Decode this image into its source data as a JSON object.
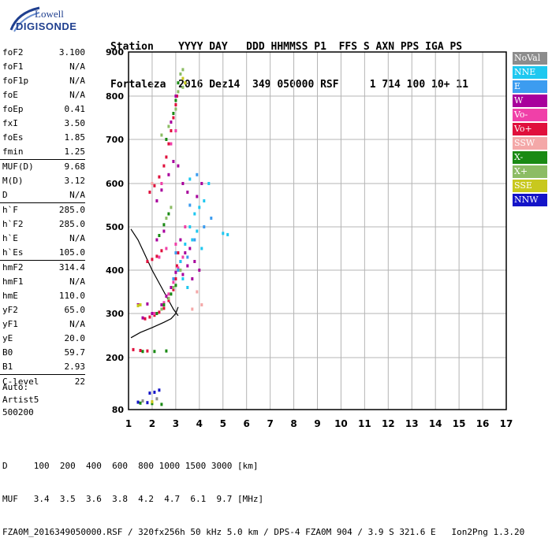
{
  "logo": {
    "brand": "Lowell",
    "name": "DIGISONDE"
  },
  "header": {
    "line1": "Station    YYYY DAY   DDD HHMMSS P1  FFS S AXN PPS IGA PS",
    "line2": "Fortaleza  2016 Dez14  349 050000 RSF     1 714 100 10+ 11"
  },
  "params": {
    "g1": [
      {
        "label": "foF2",
        "value": "3.100"
      },
      {
        "label": "foF1",
        "value": "N/A"
      },
      {
        "label": "foF1p",
        "value": "N/A"
      },
      {
        "label": "foE",
        "value": "N/A"
      },
      {
        "label": "foEp",
        "value": "0.41"
      },
      {
        "label": "fxI",
        "value": "3.50"
      },
      {
        "label": "foEs",
        "value": "1.85"
      },
      {
        "label": "fmin",
        "value": "1.25"
      }
    ],
    "g2": [
      {
        "label": "MUF(D)",
        "value": "9.68"
      },
      {
        "label": "M(D)",
        "value": "3.12"
      },
      {
        "label": "D",
        "value": "N/A"
      }
    ],
    "g3": [
      {
        "label": "h`F",
        "value": "285.0"
      },
      {
        "label": "h`F2",
        "value": "285.0"
      },
      {
        "label": "h`E",
        "value": "N/A"
      },
      {
        "label": "h`Es",
        "value": "105.0"
      }
    ],
    "g4": [
      {
        "label": "hmF2",
        "value": "314.4"
      },
      {
        "label": "hmF1",
        "value": "N/A"
      },
      {
        "label": "hmE",
        "value": "110.0"
      },
      {
        "label": "yF2",
        "value": "65.0"
      },
      {
        "label": "yF1",
        "value": "N/A"
      },
      {
        "label": "yE",
        "value": "20.0"
      },
      {
        "label": "B0",
        "value": "59.7"
      },
      {
        "label": "B1",
        "value": "2.93"
      }
    ],
    "g5": [
      {
        "label": "C-level",
        "value": "22"
      }
    ]
  },
  "auto": {
    "line1": "Auto:",
    "line2": "Artist5",
    "line3": "500200"
  },
  "legend": [
    {
      "label": "NoVal",
      "color": "#8c8c8c"
    },
    {
      "label": "NNE",
      "color": "#1ec8f0"
    },
    {
      "label": "E",
      "color": "#3c9cf0"
    },
    {
      "label": "W",
      "color": "#a8009c"
    },
    {
      "label": "Vo-",
      "color": "#f040a8"
    },
    {
      "label": "Vo+",
      "color": "#e0103c"
    },
    {
      "label": "SSW",
      "color": "#f4a8a8"
    },
    {
      "label": "X-",
      "color": "#1a8a14"
    },
    {
      "label": "X+",
      "color": "#8cbc64"
    },
    {
      "label": "SSE",
      "color": "#c8c81e"
    },
    {
      "label": "NNW",
      "color": "#1414c8"
    }
  ],
  "footer": {
    "line1": "D     100  200  400  600  800 1000 1500 3000 [km]",
    "line2": "MUF   3.4  3.5  3.6  3.8  4.2  4.7  6.1  9.7 [MHz]",
    "line3": "FZA0M_2016349050000.RSF / 320fx256h 50 kHz 5.0 km / DPS-4 FZA0M 904 / 3.9 S 321.6 E   Ion2Png 1.3.20"
  },
  "chart_data": {
    "type": "scatter",
    "xlim": [
      1,
      17
    ],
    "ylim": [
      80,
      900
    ],
    "xticks": [
      "1",
      "2",
      "3",
      "4",
      "5",
      "6",
      "7",
      "8",
      "9",
      "10",
      "11",
      "12",
      "13",
      "14",
      "15",
      "16",
      "17"
    ],
    "yticks": [
      "80",
      "200",
      "300",
      "400",
      "500",
      "600",
      "700",
      "800",
      "900"
    ],
    "grid": true,
    "series": [
      {
        "name": "Vo+",
        "color": "#e0103c",
        "points": [
          [
            1.7,
            288
          ],
          [
            1.9,
            292
          ],
          [
            2.1,
            296
          ],
          [
            2.3,
            303
          ],
          [
            2.5,
            312
          ],
          [
            2.7,
            330
          ],
          [
            2.9,
            355
          ],
          [
            3.0,
            380
          ],
          [
            3.05,
            410
          ],
          [
            3.1,
            440
          ],
          [
            1.9,
            580
          ],
          [
            2.1,
            595
          ],
          [
            2.3,
            615
          ],
          [
            2.5,
            640
          ],
          [
            2.6,
            660
          ],
          [
            2.7,
            690
          ],
          [
            2.8,
            720
          ],
          [
            2.9,
            750
          ],
          [
            3.0,
            780
          ],
          [
            3.05,
            800
          ],
          [
            1.8,
            420
          ],
          [
            2.0,
            425
          ],
          [
            2.2,
            432
          ],
          [
            2.4,
            445
          ],
          [
            1.2,
            218
          ],
          [
            1.5,
            216
          ],
          [
            1.8,
            215
          ]
        ]
      },
      {
        "name": "W",
        "color": "#a8009c",
        "points": [
          [
            1.6,
            290
          ],
          [
            2.0,
            300
          ],
          [
            2.4,
            320
          ],
          [
            2.6,
            340
          ],
          [
            2.8,
            360
          ],
          [
            3.0,
            395
          ],
          [
            3.2,
            420
          ],
          [
            3.4,
            440
          ],
          [
            3.6,
            450
          ],
          [
            3.8,
            420
          ],
          [
            4.0,
            400
          ],
          [
            3.3,
            390
          ],
          [
            3.5,
            410
          ],
          [
            3.7,
            380
          ],
          [
            2.2,
            560
          ],
          [
            2.4,
            585
          ],
          [
            2.7,
            620
          ],
          [
            2.9,
            650
          ],
          [
            3.1,
            640
          ],
          [
            3.3,
            600
          ],
          [
            3.5,
            580
          ],
          [
            3.9,
            570
          ],
          [
            4.1,
            600
          ],
          [
            2.8,
            740
          ],
          [
            3.0,
            800
          ],
          [
            1.4,
            320
          ],
          [
            1.8,
            322
          ],
          [
            2.2,
            470
          ],
          [
            2.5,
            490
          ],
          [
            3.2,
            470
          ]
        ]
      },
      {
        "name": "Vo-",
        "color": "#f040a8",
        "points": [
          [
            2.1,
            300
          ],
          [
            2.5,
            325
          ],
          [
            2.7,
            345
          ],
          [
            2.9,
            372
          ],
          [
            3.1,
            405
          ],
          [
            3.3,
            430
          ],
          [
            3.0,
            460
          ],
          [
            2.3,
            430
          ],
          [
            2.6,
            450
          ],
          [
            2.4,
            600
          ],
          [
            2.8,
            690
          ],
          [
            3.0,
            720
          ],
          [
            3.4,
            500
          ]
        ]
      },
      {
        "name": "NNE",
        "color": "#1ec8f0",
        "points": [
          [
            3.2,
            420
          ],
          [
            3.4,
            460
          ],
          [
            3.6,
            500
          ],
          [
            3.8,
            530
          ],
          [
            4.0,
            545
          ],
          [
            3.7,
            470
          ],
          [
            3.9,
            490
          ],
          [
            4.1,
            450
          ],
          [
            3.3,
            380
          ],
          [
            3.5,
            360
          ],
          [
            4.2,
            560
          ],
          [
            4.4,
            600
          ],
          [
            3.6,
            610
          ],
          [
            5.0,
            485
          ],
          [
            5.2,
            482
          ]
        ]
      },
      {
        "name": "E",
        "color": "#3c9cf0",
        "points": [
          [
            3.1,
            400
          ],
          [
            3.5,
            430
          ],
          [
            3.8,
            470
          ],
          [
            4.2,
            500
          ],
          [
            3.0,
            440
          ],
          [
            2.9,
            380
          ],
          [
            3.6,
            550
          ],
          [
            3.9,
            620
          ],
          [
            4.5,
            520
          ]
        ]
      },
      {
        "name": "X-",
        "color": "#1a8a14",
        "points": [
          [
            2.2,
            300
          ],
          [
            2.5,
            320
          ],
          [
            2.8,
            345
          ],
          [
            3.0,
            365
          ],
          [
            2.3,
            480
          ],
          [
            2.5,
            505
          ],
          [
            2.7,
            530
          ],
          [
            2.9,
            760
          ],
          [
            3.0,
            790
          ],
          [
            3.1,
            830
          ],
          [
            2.6,
            700
          ],
          [
            1.5,
            95
          ],
          [
            2.0,
            94
          ],
          [
            2.4,
            92
          ],
          [
            1.6,
            214
          ],
          [
            2.1,
            214
          ],
          [
            2.6,
            215
          ]
        ]
      },
      {
        "name": "X+",
        "color": "#8cbc64",
        "points": [
          [
            2.4,
            310
          ],
          [
            2.7,
            335
          ],
          [
            2.9,
            360
          ],
          [
            3.2,
            400
          ],
          [
            2.6,
            520
          ],
          [
            2.8,
            545
          ],
          [
            3.0,
            770
          ],
          [
            3.1,
            810
          ],
          [
            3.2,
            850
          ],
          [
            3.3,
            860
          ],
          [
            2.4,
            710
          ],
          [
            2.7,
            730
          ],
          [
            3.3,
            820
          ]
        ]
      },
      {
        "name": "SSE",
        "color": "#c8c81e",
        "points": [
          [
            1.4,
            318
          ],
          [
            1.5,
            320
          ],
          [
            3.3,
            840
          ],
          [
            3.4,
            830
          ],
          [
            2.0,
            98
          ]
        ]
      },
      {
        "name": "NNW",
        "color": "#1414c8",
        "points": [
          [
            1.4,
            97
          ],
          [
            1.8,
            96
          ],
          [
            2.1,
            120
          ],
          [
            2.3,
            125
          ],
          [
            1.9,
            118
          ]
        ]
      },
      {
        "name": "SSW",
        "color": "#f4a8a8",
        "points": [
          [
            3.9,
            350
          ],
          [
            4.1,
            320
          ],
          [
            3.7,
            310
          ],
          [
            2.0,
            600
          ]
        ]
      },
      {
        "name": "NoVal",
        "color": "#8c8c8c",
        "points": [
          [
            1.6,
            100
          ],
          [
            2.2,
            105
          ]
        ]
      }
    ],
    "trace": [
      [
        1.1,
        245
      ],
      [
        1.5,
        257
      ],
      [
        2.0,
        268
      ],
      [
        2.5,
        280
      ],
      [
        2.8,
        288
      ],
      [
        3.0,
        300
      ],
      [
        3.1,
        315
      ]
    ],
    "trace2": [
      [
        1.1,
        495
      ],
      [
        1.4,
        470
      ],
      [
        1.7,
        435
      ],
      [
        2.0,
        400
      ],
      [
        2.3,
        370
      ],
      [
        2.6,
        340
      ],
      [
        2.9,
        310
      ],
      [
        3.1,
        295
      ]
    ]
  }
}
